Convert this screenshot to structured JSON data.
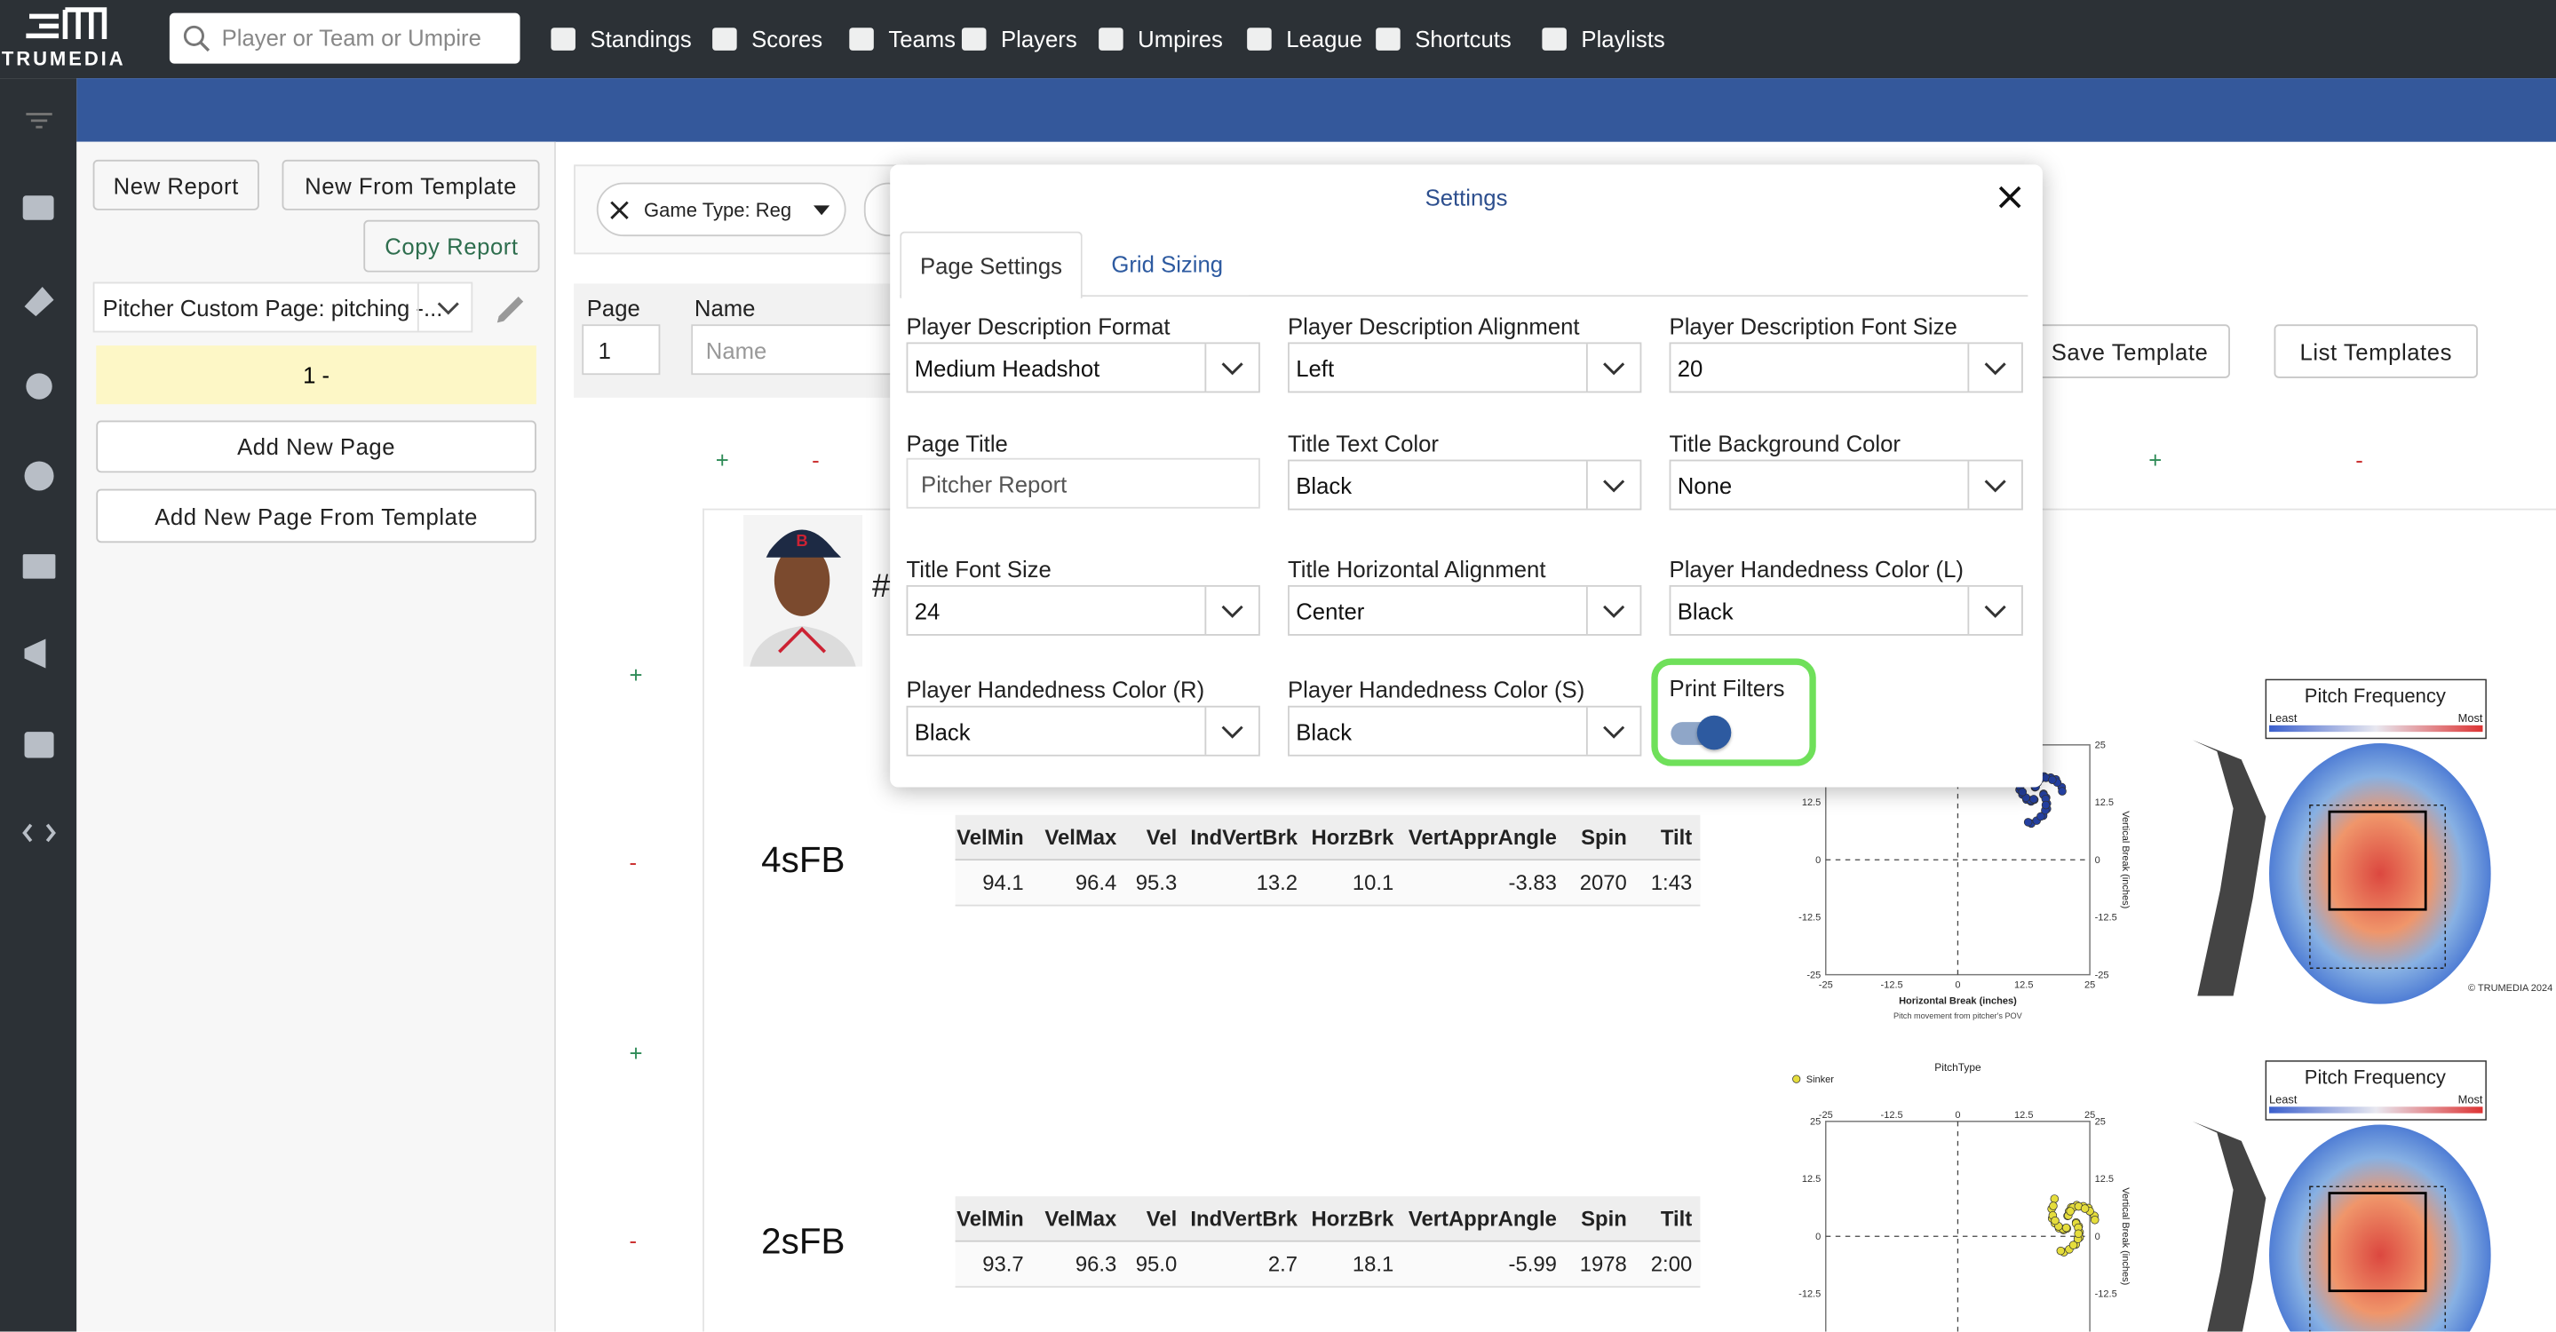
{
  "nav": {
    "logo": "TRUMEDIA",
    "search_placeholder": "Player or Team or Umpire",
    "items": [
      "Standings",
      "Scores",
      "Teams",
      "Players",
      "Umpires",
      "League",
      "Shortcuts",
      "Playlists"
    ]
  },
  "left_panel": {
    "new_report": "New Report",
    "new_from_template": "New From Template",
    "copy_report": "Copy Report",
    "page_select": "Pitcher Custom Page: pitching -...",
    "current_page": "1 -",
    "add_new_page": "Add New Page",
    "add_new_page_from_template": "Add New Page From Template"
  },
  "toolbar": {
    "filter_chip": "Game Type: Reg",
    "page_label": "Page",
    "page_value": "1",
    "name_label": "Name",
    "name_placeholder": "Name",
    "save_template": "Save Template",
    "list_templates": "List Templates"
  },
  "grid_controls": [
    "+",
    "-",
    "+",
    "-",
    "+",
    "-",
    "+",
    "-"
  ],
  "player": {
    "number_prefix": "#"
  },
  "pitch_tables": {
    "headers": [
      "VelMin",
      "VelMax",
      "Vel",
      "IndVertBrk",
      "HorzBrk",
      "VertApprAngle",
      "Spin",
      "Tilt"
    ],
    "rows": [
      {
        "pitch": "4sFB",
        "cells": [
          "94.1",
          "96.4",
          "95.3",
          "13.2",
          "10.1",
          "-3.83",
          "2070",
          "1:43"
        ]
      },
      {
        "pitch": "2sFB",
        "cells": [
          "93.7",
          "96.3",
          "95.0",
          "2.7",
          "18.1",
          "-5.99",
          "1978",
          "2:00"
        ]
      }
    ]
  },
  "charts": {
    "heatmap_title": "Pitch Frequency",
    "least": "Least",
    "most": "Most",
    "movement_x_label": "Horizontal Break (inches)",
    "movement_subtitle": "Pitch movement from pitcher's POV",
    "movement_y_label": "Vertical Break (inches)",
    "legend_title": "PitchType",
    "legend_item": "Sinker",
    "copyright": "© TRUMEDIA 2024",
    "axis_ticks": [
      "25",
      "12.5",
      "0",
      "-12.5",
      "-25"
    ]
  },
  "settings_modal": {
    "title": "Settings",
    "tabs": [
      "Page Settings",
      "Grid Sizing"
    ],
    "active_tab": 0,
    "fields": [
      {
        "label": "Player Description Format",
        "value": "Medium Headshot",
        "control": "select"
      },
      {
        "label": "Player Description Alignment",
        "value": "Left",
        "control": "select"
      },
      {
        "label": "Player Description Font Size",
        "value": "20",
        "control": "select"
      },
      {
        "label": "Page Title",
        "value": "Pitcher Report",
        "control": "text"
      },
      {
        "label": "Title Text Color",
        "value": "Black",
        "control": "select"
      },
      {
        "label": "Title Background Color",
        "value": "None",
        "control": "select"
      },
      {
        "label": "Title Font Size",
        "value": "24",
        "control": "select"
      },
      {
        "label": "Title Horizontal Alignment",
        "value": "Center",
        "control": "select"
      },
      {
        "label": "Player Handedness Color (L)",
        "value": "Black",
        "control": "select"
      },
      {
        "label": "Player Handedness Color (R)",
        "value": "Black",
        "control": "select"
      },
      {
        "label": "Player Handedness Color (S)",
        "value": "Black",
        "control": "select"
      }
    ],
    "print_filters": {
      "label": "Print Filters",
      "on": true
    }
  }
}
